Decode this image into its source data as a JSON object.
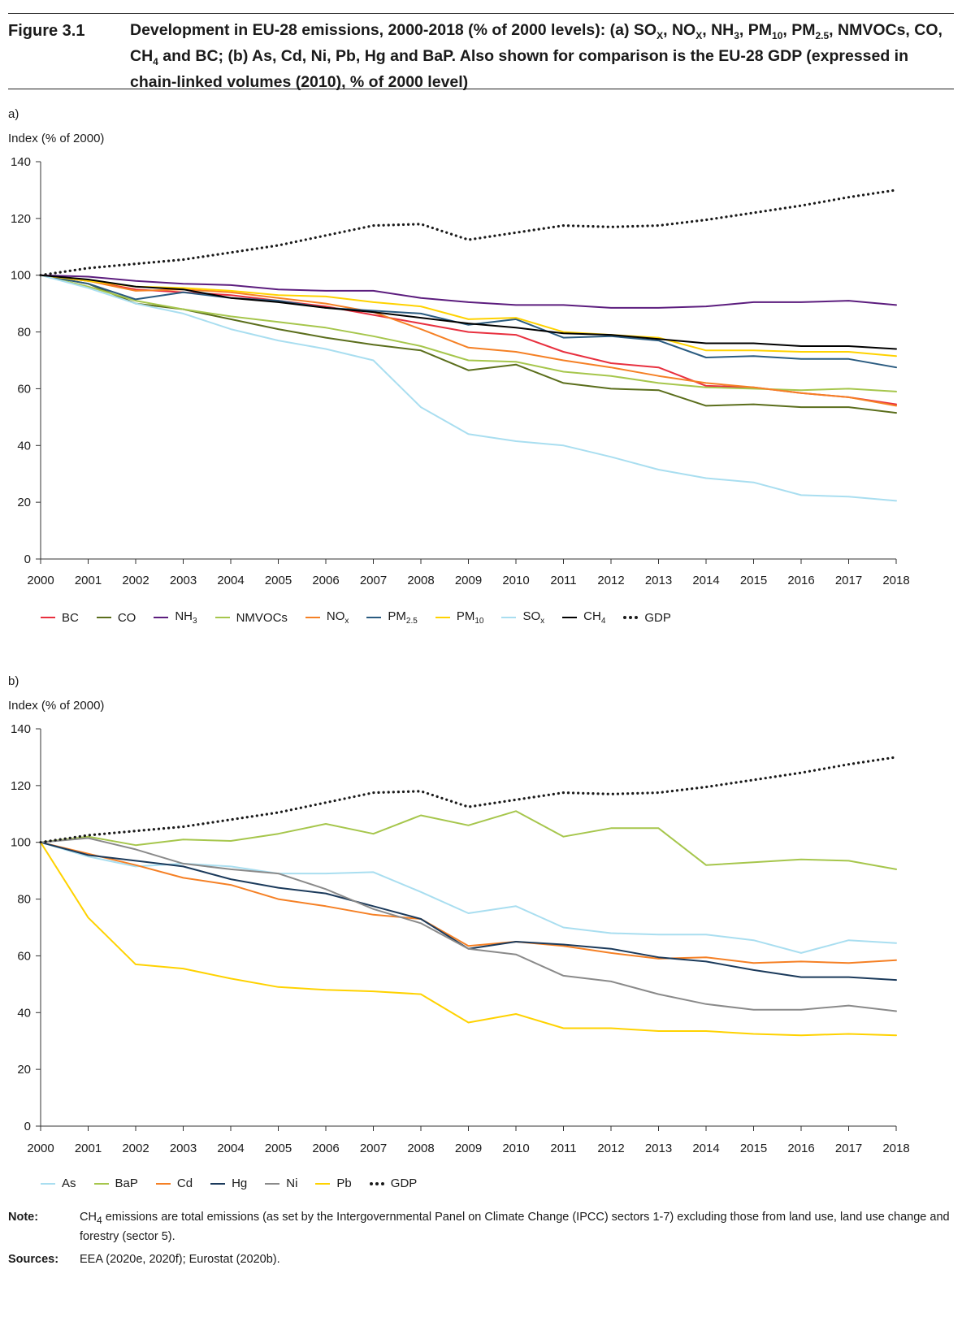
{
  "figure": {
    "label": "Figure 3.1",
    "title_line1": "Development in EU-28 emissions, 2000-2018 (% of 2000 levels): (a) SO",
    "title_html": "Development in EU-28 emissions, 2000-2018 (% of 2000 levels): (a) SO<sub>X</sub>, NO<sub>X</sub>, NH<sub>3</sub>, PM<sub>10</sub>, PM<sub>2.5</sub>, NMVOCs, CO, CH<sub>4</sub> and BC; (b) As, Cd, Ni, Pb, Hg and BaP. Also shown for comparison is the EU-28 GDP (expressed in chain-linked volumes (2010), % of 2000 level)"
  },
  "note": {
    "label": "Note:",
    "text_html": "CH<sub>4</sub> emissions are total emissions (as set by the Intergovernmental Panel on Climate Change (IPCC) sectors 1-7) excluding those from land use, land use change and forestry (sector 5)."
  },
  "sources": {
    "label": "Sources:",
    "text": "EEA (2020e, 2020f); Eurostat (2020b)."
  },
  "chart_data": [
    {
      "panel": "a)",
      "type": "line",
      "ylabel": "Index (% of 2000)",
      "ylim": [
        0,
        140
      ],
      "yticks": [
        0,
        20,
        40,
        60,
        80,
        100,
        120,
        140
      ],
      "x": [
        2000,
        2001,
        2002,
        2003,
        2004,
        2005,
        2006,
        2007,
        2008,
        2009,
        2010,
        2011,
        2012,
        2013,
        2014,
        2015,
        2016,
        2017,
        2018
      ],
      "legend_position": "bottom",
      "series": [
        {
          "name": "BC",
          "legend_html": "BC",
          "color": "#e8303f",
          "style": "solid",
          "values": [
            100,
            98,
            95,
            94,
            93,
            91,
            89,
            86,
            83,
            80,
            79,
            73,
            69,
            67.5,
            61,
            60.5,
            58.5,
            57,
            54.5
          ]
        },
        {
          "name": "CO",
          "legend_html": "CO",
          "color": "#5b6e1c",
          "style": "solid",
          "values": [
            100,
            97,
            90,
            88,
            84.5,
            81,
            78,
            75.5,
            73.5,
            66.5,
            68.5,
            62,
            60,
            59.5,
            54,
            54.5,
            53.5,
            53.5,
            51.5
          ]
        },
        {
          "name": "NH3",
          "legend_html": "NH<sub>3</sub>",
          "color": "#5c1d7e",
          "style": "solid",
          "values": [
            100,
            99.5,
            98,
            97,
            96.5,
            95,
            94.5,
            94.5,
            92,
            90.5,
            89.5,
            89.5,
            88.5,
            88.5,
            89,
            90.5,
            90.5,
            91,
            89.5
          ]
        },
        {
          "name": "NMVOCs",
          "legend_html": "NMVOCs",
          "color": "#a6c64c",
          "style": "solid",
          "values": [
            100,
            96,
            91,
            88,
            85.5,
            83.5,
            81.5,
            78.5,
            75,
            70,
            69.5,
            66,
            64.5,
            62,
            60.5,
            60,
            59.5,
            60,
            59
          ]
        },
        {
          "name": "NOx",
          "legend_html": "NO<sub>x</sub>",
          "color": "#f58025",
          "style": "solid",
          "values": [
            100,
            98,
            94.5,
            95,
            94,
            92,
            90,
            87,
            81,
            74.5,
            73,
            70,
            67.5,
            64.5,
            62,
            60.5,
            58.5,
            57,
            54
          ]
        },
        {
          "name": "PM2.5",
          "legend_html": "PM<sub>2.5</sub>",
          "color": "#2a5b80",
          "style": "solid",
          "values": [
            100,
            97,
            91.5,
            94,
            92,
            91,
            88.5,
            87.5,
            86.5,
            82.5,
            84.5,
            78,
            78.5,
            77,
            71,
            71.5,
            70.5,
            70.5,
            67.5
          ]
        },
        {
          "name": "PM10",
          "legend_html": "PM<sub>10</sub>",
          "color": "#ffd200",
          "style": "solid",
          "values": [
            100,
            98,
            96,
            95.5,
            94.5,
            93,
            92.5,
            90.5,
            89,
            84.5,
            85,
            80,
            79,
            78,
            73.5,
            73.5,
            73,
            73,
            71.5
          ]
        },
        {
          "name": "SOx",
          "legend_html": "SO<sub>x</sub>",
          "color": "#a9def0",
          "style": "solid",
          "values": [
            100,
            95.5,
            90,
            86.5,
            81,
            77,
            74,
            70,
            53.5,
            44,
            41.5,
            40,
            36,
            31.5,
            28.5,
            27,
            22.5,
            22,
            20.5
          ]
        },
        {
          "name": "CH4",
          "legend_html": "CH<sub>4</sub>",
          "color": "#000000",
          "style": "solid",
          "values": [
            100,
            98.5,
            96,
            95,
            92,
            90.5,
            88.5,
            87,
            85,
            83,
            81.5,
            79.5,
            79,
            77.5,
            76,
            76,
            75,
            75,
            74
          ]
        },
        {
          "name": "GDP",
          "legend_html": "GDP",
          "color": "#1a1a1a",
          "style": "dotted",
          "values": [
            100,
            102.5,
            104,
            105.5,
            108,
            110.5,
            114,
            117.5,
            118,
            112.5,
            115,
            117.5,
            117,
            117.5,
            119.5,
            122,
            124.5,
            127.5,
            130
          ]
        }
      ]
    },
    {
      "panel": "b)",
      "type": "line",
      "ylabel": "Index (% of 2000)",
      "ylim": [
        0,
        140
      ],
      "yticks": [
        0,
        20,
        40,
        60,
        80,
        100,
        120,
        140
      ],
      "x": [
        2000,
        2001,
        2002,
        2003,
        2004,
        2005,
        2006,
        2007,
        2008,
        2009,
        2010,
        2011,
        2012,
        2013,
        2014,
        2015,
        2016,
        2017,
        2018
      ],
      "legend_position": "bottom",
      "series": [
        {
          "name": "As",
          "legend_html": "As",
          "color": "#a9def0",
          "style": "solid",
          "values": [
            100,
            95,
            91.5,
            92.5,
            91.5,
            89,
            89,
            89.5,
            82.5,
            75,
            77.5,
            70,
            68,
            67.5,
            67.5,
            65.5,
            61,
            65.5,
            64.5
          ]
        },
        {
          "name": "BaP",
          "legend_html": "BaP",
          "color": "#a6c64c",
          "style": "solid",
          "values": [
            100,
            102,
            99,
            101,
            100.5,
            103,
            106.5,
            103,
            109.5,
            106,
            111,
            102,
            105,
            105,
            92,
            93,
            94,
            93.5,
            90.5
          ]
        },
        {
          "name": "Cd",
          "legend_html": "Cd",
          "color": "#f58025",
          "style": "solid",
          "values": [
            100,
            96,
            92,
            87.5,
            85,
            80,
            77.5,
            74.5,
            73,
            63.5,
            65,
            63.5,
            61,
            59,
            59.5,
            57.5,
            58,
            57.5,
            58.5
          ]
        },
        {
          "name": "Hg",
          "legend_html": "Hg",
          "color": "#1b3a5b",
          "style": "solid",
          "values": [
            100,
            95.5,
            93.5,
            91.5,
            87,
            84,
            82,
            77.5,
            73,
            62.5,
            65,
            64,
            62.5,
            59.5,
            58,
            55,
            52.5,
            52.5,
            51.5
          ]
        },
        {
          "name": "Ni",
          "legend_html": "Ni",
          "color": "#8a8a8a",
          "style": "solid",
          "values": [
            100,
            101.5,
            97.5,
            92.5,
            90.5,
            89,
            83.5,
            76.5,
            71.5,
            62.5,
            60.5,
            53,
            51,
            46.5,
            43,
            41,
            41,
            42.5,
            40.5
          ]
        },
        {
          "name": "Pb",
          "legend_html": "Pb",
          "color": "#ffd200",
          "style": "solid",
          "values": [
            100,
            73.5,
            57,
            55.5,
            52,
            49,
            48,
            47.5,
            46.5,
            36.5,
            39.5,
            34.5,
            34.5,
            33.5,
            33.5,
            32.5,
            32,
            32.5,
            32
          ]
        },
        {
          "name": "GDP",
          "legend_html": "GDP",
          "color": "#1a1a1a",
          "style": "dotted",
          "values": [
            100,
            102.5,
            104,
            105.5,
            108,
            110.5,
            114,
            117.5,
            118,
            112.5,
            115,
            117.5,
            117,
            117.5,
            119.5,
            122,
            124.5,
            127.5,
            130
          ]
        }
      ]
    }
  ]
}
